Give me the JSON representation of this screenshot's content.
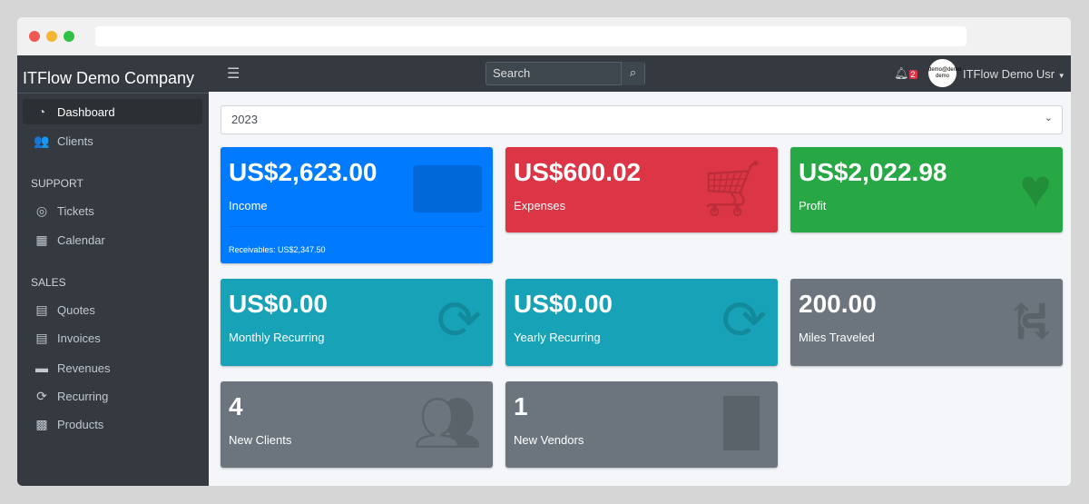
{
  "sidebar": {
    "brand": "ITFlow Demo Company",
    "items": [
      {
        "label": "Dashboard",
        "icon": "tachometer-icon"
      },
      {
        "label": "Clients",
        "icon": "users-icon"
      }
    ],
    "support_header": "SUPPORT",
    "support": [
      {
        "label": "Tickets",
        "icon": "life-ring-icon"
      },
      {
        "label": "Calendar",
        "icon": "calendar-icon"
      }
    ],
    "sales_header": "SALES",
    "sales": [
      {
        "label": "Quotes",
        "icon": "file-icon"
      },
      {
        "label": "Invoices",
        "icon": "invoice-icon"
      },
      {
        "label": "Revenues",
        "icon": "credit-card-icon"
      },
      {
        "label": "Recurring",
        "icon": "sync-icon"
      },
      {
        "label": "Products",
        "icon": "box-icon"
      }
    ]
  },
  "topbar": {
    "search_placeholder": "Search",
    "notifications": "2",
    "avatar_text": "demo@demo demo",
    "user": "ITFlow Demo Usr"
  },
  "year_select": "2023",
  "cards": [
    {
      "value": "US$2,623.00",
      "label": "Income",
      "footer": "Receivables: US$2,347.50",
      "color": "#007bff",
      "icon": "credit-card-icon"
    },
    {
      "value": "US$600.02",
      "label": "Expenses",
      "color": "#dc3545",
      "icon": "cart-icon"
    },
    {
      "value": "US$2,022.98",
      "label": "Profit",
      "color": "#28a745",
      "icon": "heart-icon"
    },
    {
      "value": "US$0.00",
      "label": "Monthly Recurring",
      "color": "#17a2b8",
      "icon": "sync-icon"
    },
    {
      "value": "US$0.00",
      "label": "Yearly Recurring",
      "color": "#17a2b8",
      "icon": "sync-icon"
    },
    {
      "value": "200.00",
      "label": "Miles Traveled",
      "color": "#6c757d",
      "icon": "route-icon"
    },
    {
      "value": "4",
      "label": "New Clients",
      "color": "#6c757d",
      "icon": "users-icon"
    },
    {
      "value": "1",
      "label": "New Vendors",
      "color": "#6c757d",
      "icon": "building-icon"
    }
  ]
}
